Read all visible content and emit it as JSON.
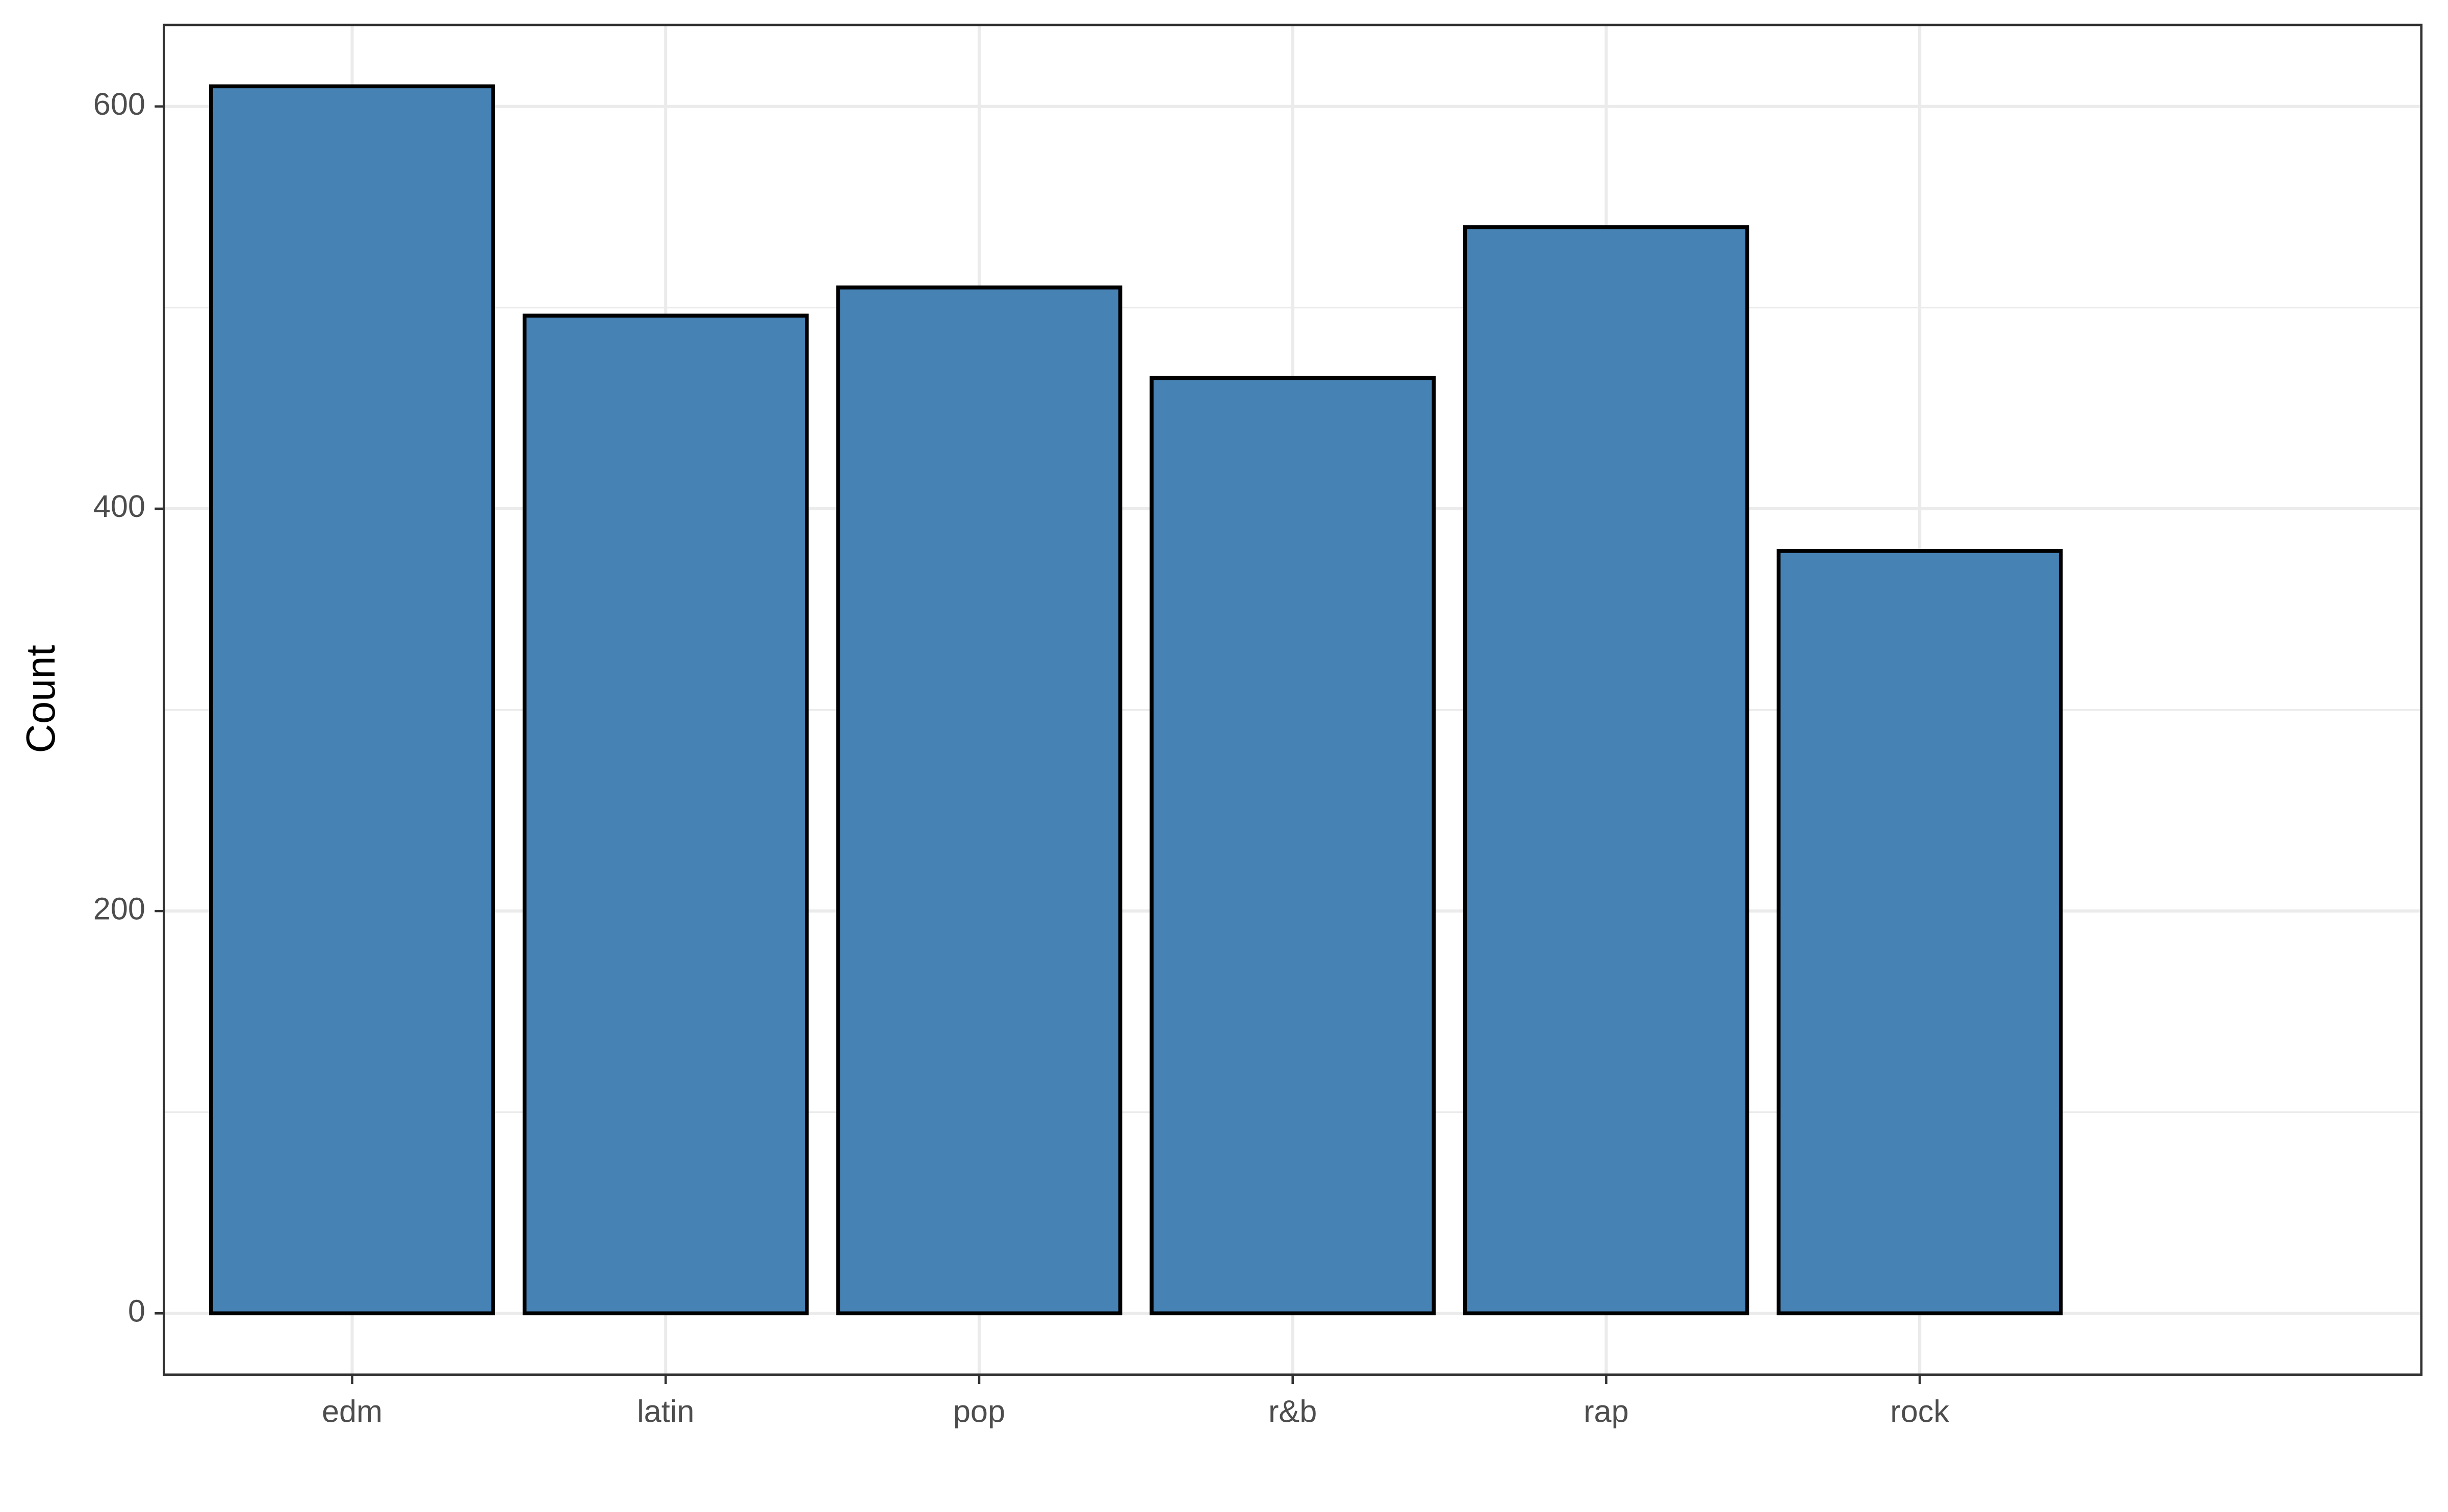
{
  "chart_data": {
    "type": "bar",
    "y_label": "Count",
    "categories": [
      "edm",
      "latin",
      "pop",
      "r&b",
      "rap",
      "rock"
    ],
    "values": [
      610,
      496,
      510,
      465,
      540,
      379
    ],
    "color": "#4682b4",
    "edge_color": "#000000",
    "ylim": [
      -30.5,
      640.5
    ],
    "yticks": [
      0,
      200,
      400,
      600
    ],
    "y_minor_ticks": [
      100,
      300,
      500
    ],
    "grid": true
  }
}
